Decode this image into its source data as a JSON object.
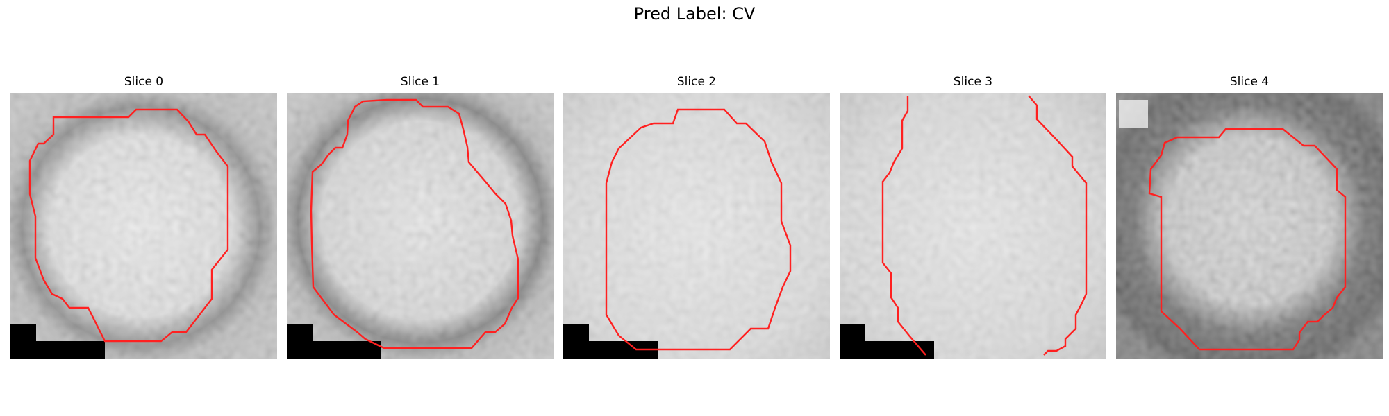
{
  "figure": {
    "title": "Pred Label: CV"
  },
  "panels": [
    {
      "title": "Slice 0"
    },
    {
      "title": "Slice 1"
    },
    {
      "title": "Slice 2"
    },
    {
      "title": "Slice 3"
    },
    {
      "title": "Slice 4"
    }
  ],
  "contour_color": "#ff0000",
  "colormap": "grayscale"
}
